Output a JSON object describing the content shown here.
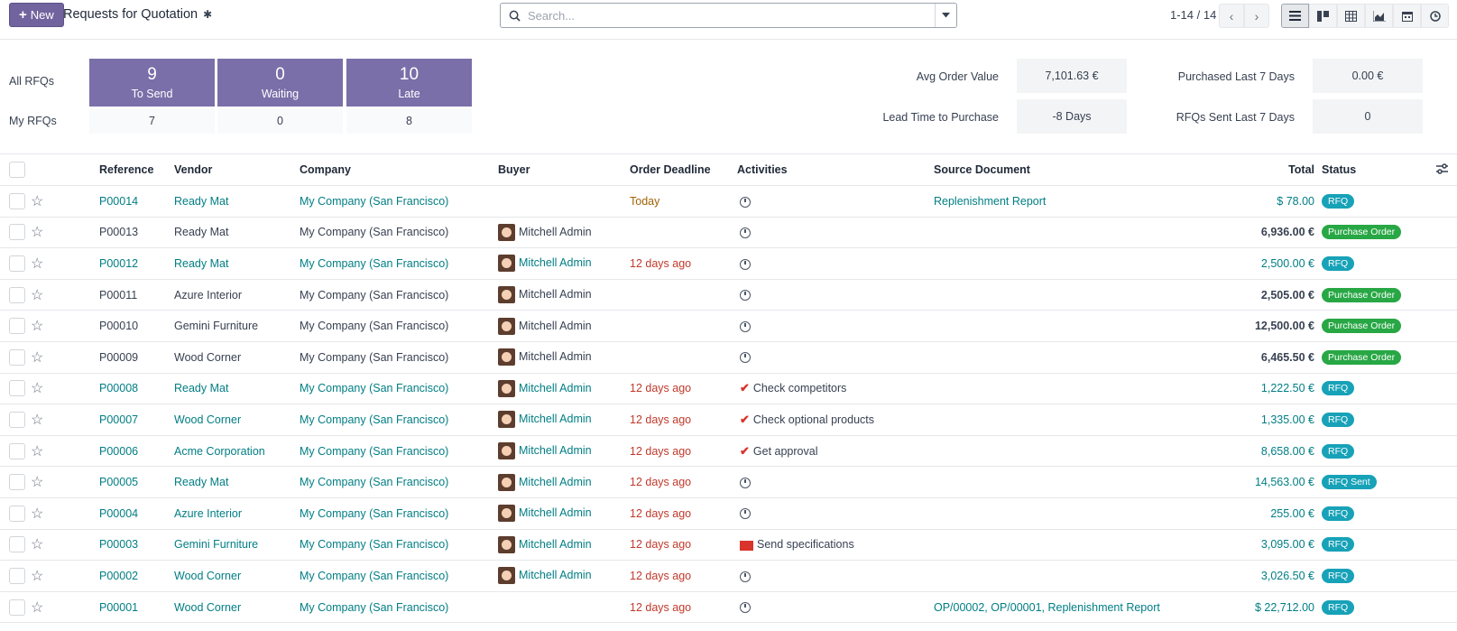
{
  "header": {
    "new_label": "New",
    "title": "Requests for Quotation",
    "search_placeholder": "Search...",
    "pager": "1-14 / 14",
    "views": [
      "list-view-icon",
      "kanban-view-icon",
      "pivot-view-icon",
      "graph-view-icon",
      "calendar-view-icon",
      "activity-view-icon"
    ]
  },
  "dashboard": {
    "all_label": "All RFQs",
    "my_label": "My RFQs",
    "tiles": [
      {
        "num": "9",
        "label": "To Send",
        "mine": "7"
      },
      {
        "num": "0",
        "label": "Waiting",
        "mine": "0"
      },
      {
        "num": "10",
        "label": "Late",
        "mine": "8"
      }
    ],
    "kpis": [
      {
        "label": "Avg Order Value",
        "value": "7,101.63 €"
      },
      {
        "label": "Purchased Last 7 Days",
        "value": "0.00 €"
      },
      {
        "label": "Lead Time to Purchase",
        "value": "-8 Days"
      },
      {
        "label": "RFQs Sent Last 7 Days",
        "value": "0"
      }
    ]
  },
  "table": {
    "columns": {
      "reference": "Reference",
      "vendor": "Vendor",
      "company": "Company",
      "buyer": "Buyer",
      "deadline": "Order Deadline",
      "activities": "Activities",
      "source": "Source Document",
      "total": "Total",
      "status": "Status"
    },
    "rows": [
      {
        "ref": "P00014",
        "vendor": "Ready Mat",
        "company": "My Company (San Francisco)",
        "buyer": "",
        "deadline": "Today",
        "activity": "",
        "act_icon": "clock",
        "source": "Replenishment Report",
        "total": "$ 78.00",
        "status": "RFQ"
      },
      {
        "ref": "P00013",
        "vendor": "Ready Mat",
        "company": "My Company (San Francisco)",
        "buyer": "Mitchell Admin",
        "deadline": "",
        "activity": "",
        "act_icon": "clock",
        "source": "",
        "total": "6,936.00 €",
        "status": "Purchase Order"
      },
      {
        "ref": "P00012",
        "vendor": "Ready Mat",
        "company": "My Company (San Francisco)",
        "buyer": "Mitchell Admin",
        "deadline": "12 days ago",
        "activity": "",
        "act_icon": "clock",
        "source": "",
        "total": "2,500.00 €",
        "status": "RFQ"
      },
      {
        "ref": "P00011",
        "vendor": "Azure Interior",
        "company": "My Company (San Francisco)",
        "buyer": "Mitchell Admin",
        "deadline": "",
        "activity": "",
        "act_icon": "clock",
        "source": "",
        "total": "2,505.00 €",
        "status": "Purchase Order"
      },
      {
        "ref": "P00010",
        "vendor": "Gemini Furniture",
        "company": "My Company (San Francisco)",
        "buyer": "Mitchell Admin",
        "deadline": "",
        "activity": "",
        "act_icon": "clock",
        "source": "",
        "total": "12,500.00 €",
        "status": "Purchase Order"
      },
      {
        "ref": "P00009",
        "vendor": "Wood Corner",
        "company": "My Company (San Francisco)",
        "buyer": "Mitchell Admin",
        "deadline": "",
        "activity": "",
        "act_icon": "clock",
        "source": "",
        "total": "6,465.50 €",
        "status": "Purchase Order"
      },
      {
        "ref": "P00008",
        "vendor": "Ready Mat",
        "company": "My Company (San Francisco)",
        "buyer": "Mitchell Admin",
        "deadline": "12 days ago",
        "activity": "Check competitors",
        "act_icon": "check",
        "source": "",
        "total": "1,222.50 €",
        "status": "RFQ"
      },
      {
        "ref": "P00007",
        "vendor": "Wood Corner",
        "company": "My Company (San Francisco)",
        "buyer": "Mitchell Admin",
        "deadline": "12 days ago",
        "activity": "Check optional products",
        "act_icon": "check",
        "source": "",
        "total": "1,335.00 €",
        "status": "RFQ"
      },
      {
        "ref": "P00006",
        "vendor": "Acme Corporation",
        "company": "My Company (San Francisco)",
        "buyer": "Mitchell Admin",
        "deadline": "12 days ago",
        "activity": "Get approval",
        "act_icon": "check",
        "source": "",
        "total": "8,658.00 €",
        "status": "RFQ"
      },
      {
        "ref": "P00005",
        "vendor": "Ready Mat",
        "company": "My Company (San Francisco)",
        "buyer": "Mitchell Admin",
        "deadline": "12 days ago",
        "activity": "",
        "act_icon": "clock",
        "source": "",
        "total": "14,563.00 €",
        "status": "RFQ Sent"
      },
      {
        "ref": "P00004",
        "vendor": "Azure Interior",
        "company": "My Company (San Francisco)",
        "buyer": "Mitchell Admin",
        "deadline": "12 days ago",
        "activity": "",
        "act_icon": "clock",
        "source": "",
        "total": "255.00 €",
        "status": "RFQ"
      },
      {
        "ref": "P00003",
        "vendor": "Gemini Furniture",
        "company": "My Company (San Francisco)",
        "buyer": "Mitchell Admin",
        "deadline": "12 days ago",
        "activity": "Send specifications",
        "act_icon": "mail",
        "source": "",
        "total": "3,095.00 €",
        "status": "RFQ"
      },
      {
        "ref": "P00002",
        "vendor": "Wood Corner",
        "company": "My Company (San Francisco)",
        "buyer": "Mitchell Admin",
        "deadline": "12 days ago",
        "activity": "",
        "act_icon": "clock",
        "source": "",
        "total": "3,026.50 €",
        "status": "RFQ"
      },
      {
        "ref": "P00001",
        "vendor": "Wood Corner",
        "company": "My Company (San Francisco)",
        "buyer": "",
        "deadline": "12 days ago",
        "activity": "",
        "act_icon": "clock",
        "source": "OP/00002, OP/00001, Replenishment Report",
        "total": "$ 22,712.00",
        "status": "RFQ"
      }
    ]
  }
}
